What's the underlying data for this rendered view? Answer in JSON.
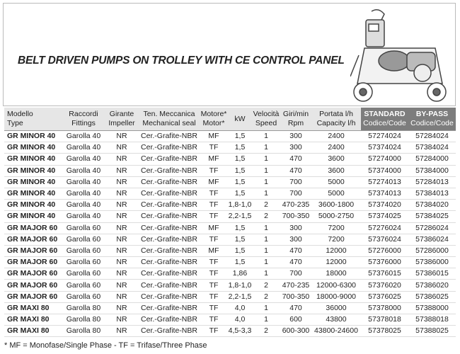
{
  "header": {
    "title": "BELT DRIVEN PUMPS ON TROLLEY WITH CE CONTROL PANEL"
  },
  "table": {
    "columns": [
      [
        "Modello",
        "Type"
      ],
      [
        "Raccordi",
        "Fittings"
      ],
      [
        "Girante",
        "Impeller"
      ],
      [
        "Ten. Meccanica",
        "Mechanical seal"
      ],
      [
        "Motore*",
        "Motor*"
      ],
      [
        "kW"
      ],
      [
        "Velocità",
        "Speed"
      ],
      [
        "Giri/min",
        "Rpm"
      ],
      [
        "Portata l/h",
        "Capacity l/h"
      ],
      [
        "STANDARD",
        "Codice/Code"
      ],
      [
        "BY-PASS",
        "Codice/Code"
      ]
    ],
    "rows": [
      [
        "GR MINOR 40",
        "Garolla 40",
        "NR",
        "Cer.-Grafite-NBR",
        "MF",
        "1,5",
        "1",
        "300",
        "2400",
        "57274024",
        "57284024"
      ],
      [
        "GR MINOR 40",
        "Garolla 40",
        "NR",
        "Cer.-Grafite-NBR",
        "TF",
        "1,5",
        "1",
        "300",
        "2400",
        "57374024",
        "57384024"
      ],
      [
        "GR MINOR 40",
        "Garolla 40",
        "NR",
        "Cer.-Grafite-NBR",
        "MF",
        "1,5",
        "1",
        "470",
        "3600",
        "57274000",
        "57284000"
      ],
      [
        "GR MINOR 40",
        "Garolla 40",
        "NR",
        "Cer.-Grafite-NBR",
        "TF",
        "1,5",
        "1",
        "470",
        "3600",
        "57374000",
        "57384000"
      ],
      [
        "GR MINOR 40",
        "Garolla 40",
        "NR",
        "Cer.-Grafite-NBR",
        "MF",
        "1,5",
        "1",
        "700",
        "5000",
        "57274013",
        "57284013"
      ],
      [
        "GR MINOR 40",
        "Garolla 40",
        "NR",
        "Cer.-Grafite-NBR",
        "TF",
        "1,5",
        "1",
        "700",
        "5000",
        "57374013",
        "57384013"
      ],
      [
        "GR MINOR 40",
        "Garolla 40",
        "NR",
        "Cer.-Grafite-NBR",
        "TF",
        "1,8-1,0",
        "2",
        "470-235",
        "3600-1800",
        "57374020",
        "57384020"
      ],
      [
        "GR MINOR 40",
        "Garolla 40",
        "NR",
        "Cer.-Grafite-NBR",
        "TF",
        "2,2-1,5",
        "2",
        "700-350",
        "5000-2750",
        "57374025",
        "57384025"
      ],
      [
        "GR MAJOR 60",
        "Garolla 60",
        "NR",
        "Cer.-Grafite-NBR",
        "MF",
        "1,5",
        "1",
        "300",
        "7200",
        "57276024",
        "57286024"
      ],
      [
        "GR MAJOR 60",
        "Garolla 60",
        "NR",
        "Cer.-Grafite-NBR",
        "TF",
        "1,5",
        "1",
        "300",
        "7200",
        "57376024",
        "57386024"
      ],
      [
        "GR MAJOR 60",
        "Garolla 60",
        "NR",
        "Cer.-Grafite-NBR",
        "MF",
        "1,5",
        "1",
        "470",
        "12000",
        "57276000",
        "57286000"
      ],
      [
        "GR MAJOR 60",
        "Garolla 60",
        "NR",
        "Cer.-Grafite-NBR",
        "TF",
        "1,5",
        "1",
        "470",
        "12000",
        "57376000",
        "57386000"
      ],
      [
        "GR MAJOR 60",
        "Garolla 60",
        "NR",
        "Cer.-Grafite-NBR",
        "TF",
        "1,86",
        "1",
        "700",
        "18000",
        "57376015",
        "57386015"
      ],
      [
        "GR MAJOR 60",
        "Garolla 60",
        "NR",
        "Cer.-Grafite-NBR",
        "TF",
        "1,8-1,0",
        "2",
        "470-235",
        "12000-6300",
        "57376020",
        "57386020"
      ],
      [
        "GR MAJOR 60",
        "Garolla 60",
        "NR",
        "Cer.-Grafite-NBR",
        "TF",
        "2,2-1,5",
        "2",
        "700-350",
        "18000-9000",
        "57376025",
        "57386025"
      ],
      [
        "GR MAXI 80",
        "Garolla 80",
        "NR",
        "Cer.-Grafite-NBR",
        "TF",
        "4,0",
        "1",
        "470",
        "36000",
        "57378000",
        "57388000"
      ],
      [
        "GR MAXI 80",
        "Garolla 80",
        "NR",
        "Cer.-Grafite-NBR",
        "TF",
        "4,0",
        "1",
        "600",
        "43800",
        "57378018",
        "57388018"
      ],
      [
        "GR MAXI 80",
        "Garolla 80",
        "NR",
        "Cer.-Grafite-NBR",
        "TF",
        "4,5-3,3",
        "2",
        "600-300",
        "43800-24600",
        "57378025",
        "57388025"
      ]
    ]
  },
  "footnote": "* MF = Monofase/Single Phase - TF = Trifase/Three Phase"
}
